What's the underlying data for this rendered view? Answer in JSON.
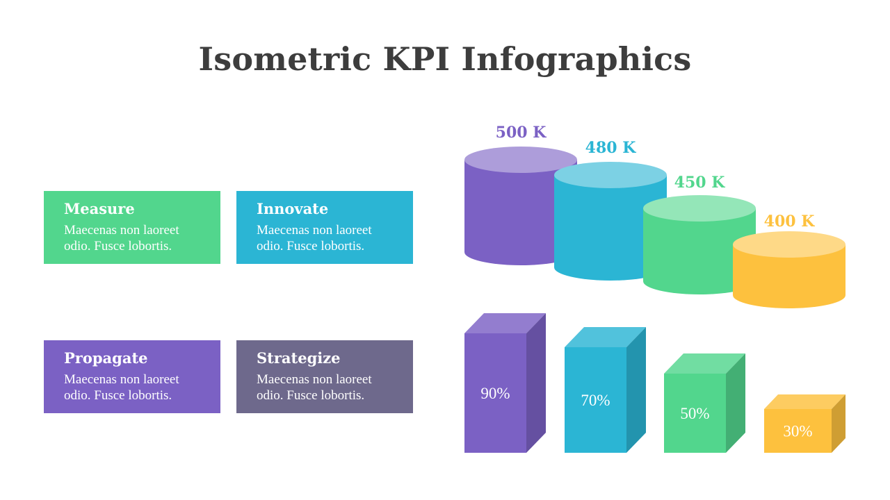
{
  "title": "Isometric KPI Infographics",
  "colors": {
    "purple": "#7b61c4",
    "blue": "#2bb5d4",
    "green": "#52d68d",
    "yellow": "#fdc13e",
    "slate": "#6e698c"
  },
  "cards": [
    {
      "title": "Measure",
      "text_line1": "Maecenas non laoreet",
      "text_line2": "odio. Fusce lobortis.",
      "color": "#52d68d"
    },
    {
      "title": "Innovate",
      "text_line1": "Maecenas non laoreet",
      "text_line2": "odio. Fusce lobortis.",
      "color": "#2bb5d4"
    },
    {
      "title": "Propagate",
      "text_line1": "Maecenas non laoreet",
      "text_line2": "odio. Fusce lobortis.",
      "color": "#7b61c4"
    },
    {
      "title": "Strategize",
      "text_line1": "Maecenas non laoreet",
      "text_line2": "odio. Fusce lobortis.",
      "color": "#6e698c"
    }
  ],
  "cylinders": [
    {
      "label": "500 K",
      "value": 500,
      "color": "purple"
    },
    {
      "label": "480 K",
      "value": 480,
      "color": "blue"
    },
    {
      "label": "450 K",
      "value": 450,
      "color": "green"
    },
    {
      "label": "400 K",
      "value": 400,
      "color": "yellow"
    }
  ],
  "boxes": [
    {
      "label": "90%",
      "value": 90,
      "color": "purple"
    },
    {
      "label": "70%",
      "value": 70,
      "color": "blue"
    },
    {
      "label": "50%",
      "value": 50,
      "color": "green"
    },
    {
      "label": "30%",
      "value": 30,
      "color": "yellow"
    }
  ]
}
